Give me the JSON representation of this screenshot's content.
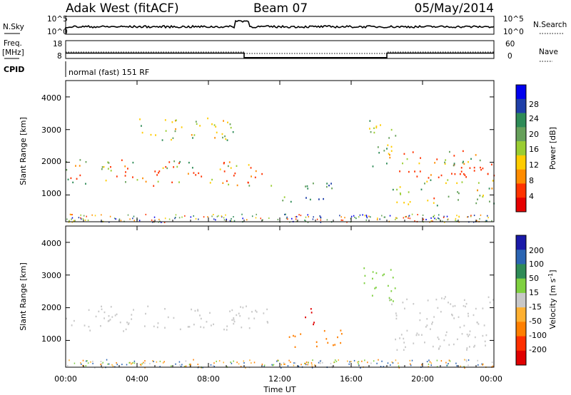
{
  "header": {
    "title": "Adak West (fitACF)",
    "beam": "Beam 07",
    "date": "05/May/2014"
  },
  "nsky": {
    "label": "N.Sky",
    "ticks": [
      "10^5",
      "10^0"
    ],
    "right_label": "N.Search",
    "right_ticks": [
      "10^5",
      "10^0"
    ]
  },
  "freq": {
    "label_line1": "Freq.",
    "label_line2": "[MHz]",
    "ticks": [
      "18",
      "8"
    ],
    "right_label": "Nave",
    "right_ticks": [
      "60",
      "0"
    ]
  },
  "cpid": {
    "label": "CPID",
    "text": "normal (fast) 151 RF"
  },
  "x_axis": {
    "label": "Time UT",
    "ticks": [
      "00:00",
      "04:00",
      "08:00",
      "12:00",
      "16:00",
      "20:00",
      "00:00"
    ],
    "hours": [
      0,
      4,
      8,
      12,
      16,
      20,
      24
    ]
  },
  "power_panel": {
    "ylabel": "Slant Range [km]",
    "yticks": [
      "4000",
      "3000",
      "2000",
      "1000"
    ],
    "colorbar_label": "Power [dB]",
    "colorbar_ticks": [
      "28",
      "24",
      "20",
      "16",
      "12",
      "8",
      "4"
    ],
    "colors": [
      "#0000ee",
      "#1f3fa8",
      "#2e8b57",
      "#66a05a",
      "#9acd32",
      "#ffcc00",
      "#ff8c00",
      "#ff3300",
      "#e60000"
    ]
  },
  "velocity_panel": {
    "ylabel": "Slant Range [km]",
    "yticks": [
      "4000",
      "3000",
      "2000",
      "1000"
    ],
    "colorbar_label": "Velocity [m s",
    "colorbar_label_sup": "-1",
    "colorbar_ticks": [
      "200",
      "100",
      "50",
      "15",
      "-15",
      "-50",
      "-100",
      "-200"
    ],
    "colors": [
      "#1a1aa8",
      "#2b65b3",
      "#2e8b57",
      "#7fd040",
      "#c8c8c8",
      "#ffb030",
      "#ff7f00",
      "#ff3000",
      "#e00000"
    ]
  },
  "chart_data": {
    "type": "heatmap",
    "x_range_hours": [
      0,
      24
    ],
    "y_range_km": [
      180,
      4500
    ],
    "power_bands": [
      {
        "t": [
          0,
          10
        ],
        "range_km": [
          1300,
          2100
        ],
        "peak_km": [
          1500,
          1750
        ],
        "power_db": [
          8,
          28
        ]
      },
      {
        "t": [
          10,
          11.5
        ],
        "range_km": [
          1250,
          2000
        ],
        "peak_km": [
          1400,
          1700
        ],
        "power_db": [
          8,
          28
        ]
      },
      {
        "t": [
          3.5,
          9.5
        ],
        "range_km": [
          2700,
          3400
        ],
        "power_db": [
          8,
          24
        ]
      },
      {
        "t": [
          12,
          15
        ],
        "range_km": [
          800,
          1400
        ],
        "power_db": [
          4,
          16
        ]
      },
      {
        "t": [
          17,
          18.5
        ],
        "range_km": [
          1800,
          3300
        ],
        "power_db": [
          8,
          20
        ]
      },
      {
        "t": [
          18,
          24
        ],
        "range_km": [
          700,
          2400
        ],
        "peak_km": [
          1500,
          1900
        ],
        "power_db": [
          8,
          28
        ]
      }
    ],
    "velocity_bands": [
      {
        "t": [
          0,
          11.5
        ],
        "range_km": [
          1300,
          2100
        ],
        "velocity_ms": [
          -15,
          15
        ]
      },
      {
        "t": [
          12.5,
          15.5
        ],
        "range_km": [
          800,
          1400
        ],
        "velocity_ms": [
          -100,
          -50
        ]
      },
      {
        "t": [
          13,
          14
        ],
        "range_km": [
          1500,
          2000
        ],
        "velocity_ms": [
          -200,
          -100
        ]
      },
      {
        "t": [
          16.5,
          18.5
        ],
        "range_km": [
          2200,
          3300
        ],
        "velocity_ms": [
          15,
          50
        ]
      },
      {
        "t": [
          18,
          24
        ],
        "range_km": [
          700,
          2400
        ],
        "velocity_ms": [
          -15,
          15
        ]
      }
    ],
    "freq_steps_mhz": [
      {
        "t": [
          0,
          10
        ],
        "value": 11
      },
      {
        "t": [
          10,
          18
        ],
        "value": 8.5
      },
      {
        "t": [
          18,
          24
        ],
        "value": 11
      }
    ]
  }
}
